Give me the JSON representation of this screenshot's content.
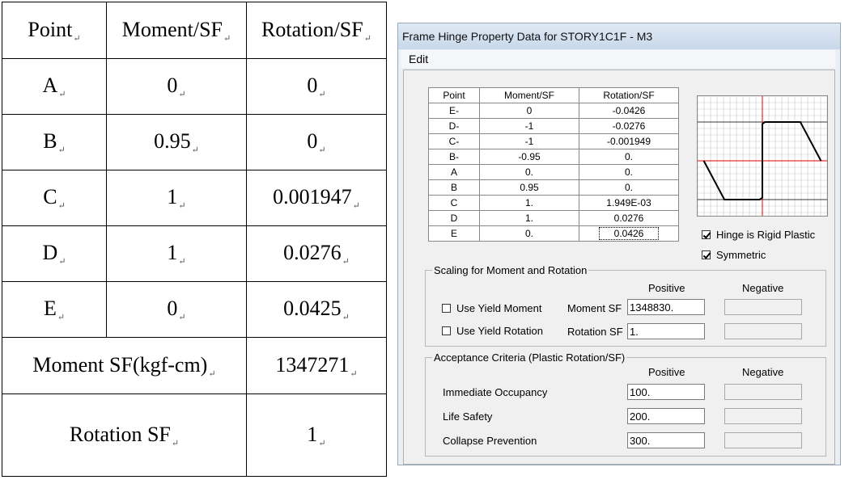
{
  "doc_table": {
    "headers": [
      "Point",
      "Moment/SF",
      "Rotation/SF"
    ],
    "rows": [
      {
        "point": "A",
        "moment": "0",
        "rotation": "0"
      },
      {
        "point": "B",
        "moment": "0.95",
        "rotation": "0"
      },
      {
        "point": "C",
        "moment": "1",
        "rotation": "0.001947"
      },
      {
        "point": "D",
        "moment": "1",
        "rotation": "0.0276"
      },
      {
        "point": "E",
        "moment": "0",
        "rotation": "0.0425"
      }
    ],
    "moment_sf_label": "Moment SF(kgf-cm)",
    "moment_sf_value": "1347271",
    "rotation_sf_label": "Rotation SF",
    "rotation_sf_value": "1",
    "para_mark": "↵"
  },
  "dialog": {
    "title": "Frame Hinge Property Data for STORY1C1F - M3",
    "menu": [
      "Edit"
    ],
    "grid_headers": [
      "Point",
      "Moment/SF",
      "Rotation/SF"
    ],
    "grid_rows": [
      {
        "point": "E-",
        "moment": "0",
        "rotation": "-0.0426"
      },
      {
        "point": "D-",
        "moment": "-1",
        "rotation": "-0.0276"
      },
      {
        "point": "C-",
        "moment": "-1",
        "rotation": "-0.001949"
      },
      {
        "point": "B-",
        "moment": "-0.95",
        "rotation": "0."
      },
      {
        "point": "A",
        "moment": "0.",
        "rotation": "0."
      },
      {
        "point": "B",
        "moment": "0.95",
        "rotation": "0."
      },
      {
        "point": "C",
        "moment": "1.",
        "rotation": "1.949E-03"
      },
      {
        "point": "D",
        "moment": "1.",
        "rotation": "0.0276"
      },
      {
        "point": "E",
        "moment": "0.",
        "rotation": "0.0426"
      }
    ],
    "hinge_rigid_plastic": {
      "label": "Hinge is Rigid Plastic",
      "checked": true
    },
    "symmetric": {
      "label": "Symmetric",
      "checked": true
    },
    "scaling": {
      "legend": "Scaling for Moment and Rotation",
      "positive_label": "Positive",
      "negative_label": "Negative",
      "use_yield_moment": {
        "label": "Use Yield Moment",
        "checked": false
      },
      "use_yield_rotation": {
        "label": "Use Yield Rotation",
        "checked": false
      },
      "moment_sf_label": "Moment SF",
      "moment_sf_value": "1348830.",
      "rotation_sf_label": "Rotation SF",
      "rotation_sf_value": "1."
    },
    "acceptance": {
      "legend": "Acceptance Criteria (Plastic Rotation/SF)",
      "positive_label": "Positive",
      "negative_label": "Negative",
      "items": [
        {
          "label": "Immediate Occupancy",
          "value": "100."
        },
        {
          "label": "Life Safety",
          "value": "200."
        },
        {
          "label": "Collapse Prevention",
          "value": "300."
        }
      ]
    },
    "curve": {
      "points": [
        {
          "rotation": -0.0426,
          "moment": 0
        },
        {
          "rotation": -0.0276,
          "moment": -1
        },
        {
          "rotation": -0.001949,
          "moment": -1
        },
        {
          "rotation": 0,
          "moment": -0.95
        },
        {
          "rotation": 0,
          "moment": 0.95
        },
        {
          "rotation": 0.001949,
          "moment": 1
        },
        {
          "rotation": 0.0276,
          "moment": 1
        },
        {
          "rotation": 0.0426,
          "moment": 0
        }
      ],
      "colors": {
        "grid": "#c8c8c8",
        "axis": "#e00000",
        "curve": "#000000",
        "major": "#000000"
      }
    }
  }
}
